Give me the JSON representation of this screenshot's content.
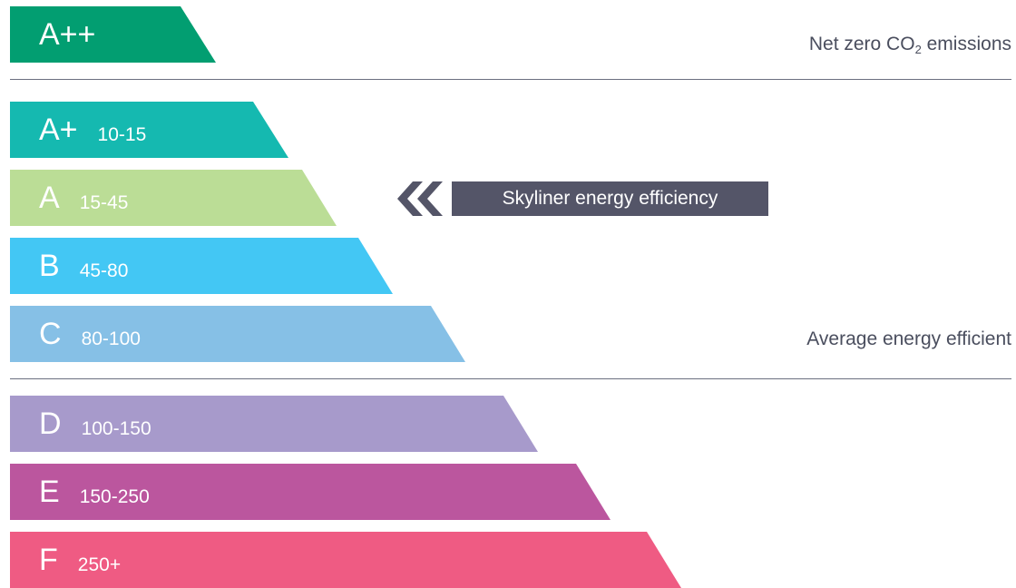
{
  "ratings": [
    {
      "grade": "A++",
      "range": "",
      "color": "#029e71"
    },
    {
      "grade": "A+",
      "range": "10-15",
      "color": "#15b9b0"
    },
    {
      "grade": "A",
      "range": "15-45",
      "color": "#bbdd96"
    },
    {
      "grade": "B",
      "range": "45-80",
      "color": "#43c7f4"
    },
    {
      "grade": "C",
      "range": "80-100",
      "color": "#86c0e6"
    },
    {
      "grade": "D",
      "range": "100-150",
      "color": "#a79acb"
    },
    {
      "grade": "E",
      "range": "150-250",
      "color": "#bb569e"
    },
    {
      "grade": "F",
      "range": "250+",
      "color": "#ef5b83"
    }
  ],
  "notes": {
    "net_zero_prefix": "Net zero CO",
    "net_zero_sub": "2",
    "net_zero_suffix": " emissions",
    "average": "Average energy efficient"
  },
  "marker": {
    "label": "Skyliner energy efficiency",
    "color": "#545568",
    "points_to": "A",
    "icon": "double-chevron-left-icon"
  }
}
